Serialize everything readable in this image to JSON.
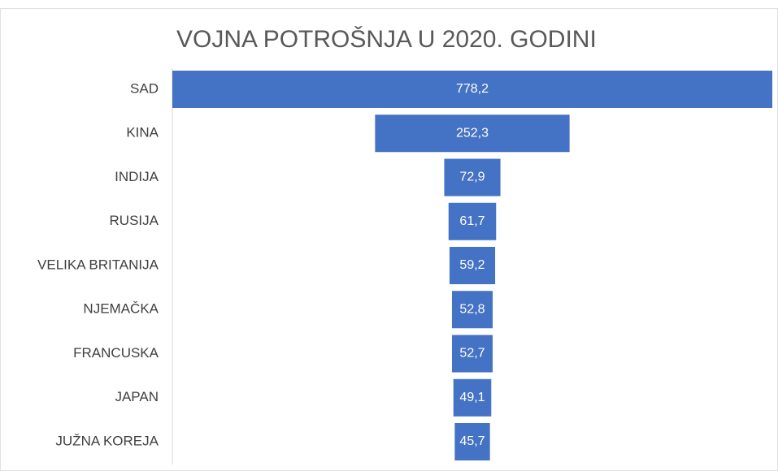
{
  "chart_data": {
    "type": "funnel",
    "title": "VOJNA POTROŠNJA U 2020. GODINI",
    "categories": [
      "SAD",
      "KINA",
      "INDIJA",
      "RUSIJA",
      "VELIKA BRITANIJA",
      "NJEMAČKA",
      "FRANCUSKA",
      "JAPAN",
      "JUŽNA KOREJA"
    ],
    "values": [
      778.2,
      252.3,
      72.9,
      61.7,
      59.2,
      52.8,
      52.7,
      49.1,
      45.7
    ],
    "value_labels": [
      "778,2",
      "252,3",
      "72,9",
      "61,7",
      "59,2",
      "52,8",
      "52,7",
      "49,1",
      "45,7"
    ],
    "color": "#4472c4"
  }
}
